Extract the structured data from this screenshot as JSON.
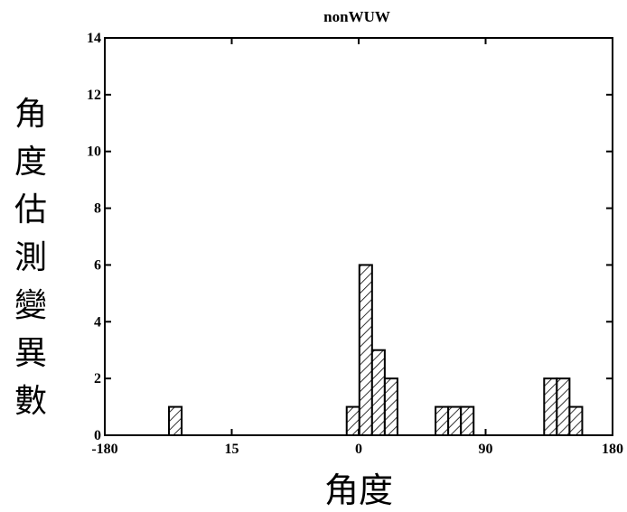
{
  "chart_data": {
    "type": "bar",
    "title": "nonWUW",
    "xlabel": "角度",
    "ylabel": "角度估測變異數",
    "xlim": [
      -180,
      180
    ],
    "ylim": [
      0,
      14
    ],
    "x_tick_labels": [
      "-180",
      "15",
      "0",
      "90",
      "180"
    ],
    "y_ticks": [
      0,
      2,
      4,
      6,
      8,
      10,
      12,
      14
    ],
    "bin_width": 9,
    "bars": [
      {
        "x": -130,
        "value": 1
      },
      {
        "x": -4,
        "value": 1
      },
      {
        "x": 5,
        "value": 6
      },
      {
        "x": 14,
        "value": 3
      },
      {
        "x": 23,
        "value": 2
      },
      {
        "x": 59,
        "value": 1
      },
      {
        "x": 68,
        "value": 1
      },
      {
        "x": 77,
        "value": 1
      },
      {
        "x": 136,
        "value": 2
      },
      {
        "x": 145,
        "value": 2
      },
      {
        "x": 154,
        "value": 1
      }
    ],
    "fill": "diagonal-hatch",
    "grid": false
  }
}
